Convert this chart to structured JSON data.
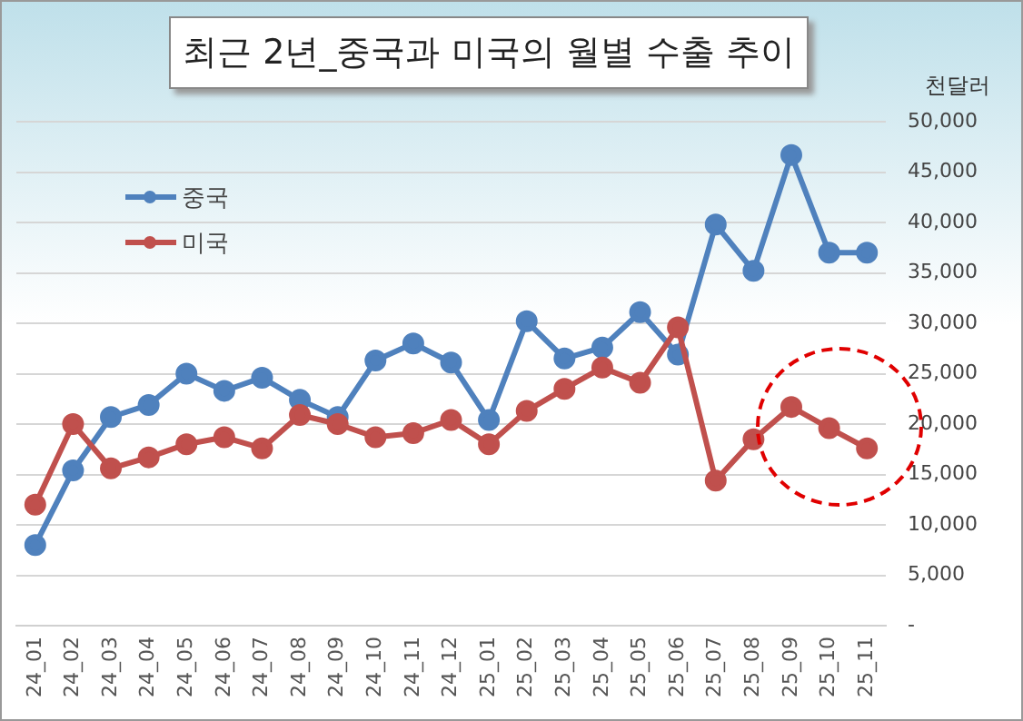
{
  "chart_data": {
    "type": "line",
    "title": "최근 2년_중국과 미국의 월별 수출 추이",
    "ylabel": "천달러",
    "categories": [
      "24_01",
      "24_02",
      "24_03",
      "24_04",
      "24_05",
      "24_06",
      "24_07",
      "24_08",
      "24_09",
      "24_10",
      "24_11",
      "24_12",
      "25_01",
      "25_02",
      "25_03",
      "25_04",
      "25_05",
      "25_06",
      "25_07",
      "25_08",
      "25_09",
      "25_10",
      "25_11"
    ],
    "series": [
      {
        "name": "중국",
        "color": "#4f81bd",
        "values": [
          8000,
          15400,
          20700,
          21900,
          25000,
          23300,
          24600,
          22400,
          20700,
          26300,
          28000,
          26100,
          20400,
          30200,
          26500,
          27600,
          31100,
          26900,
          39800,
          35200,
          46700,
          37000,
          37000
        ]
      },
      {
        "name": "미국",
        "color": "#c0504d",
        "values": [
          12000,
          20000,
          15600,
          16700,
          18000,
          18700,
          17600,
          20900,
          20000,
          18700,
          19100,
          20400,
          18000,
          21300,
          23500,
          25600,
          24100,
          29600,
          14400,
          18500,
          21700,
          19600,
          17600
        ]
      }
    ],
    "ylim": [
      0,
      50000
    ],
    "yticks": [
      {
        "value": 0,
        "label": "-"
      },
      {
        "value": 5000,
        "label": "5,000"
      },
      {
        "value": 10000,
        "label": "10,000"
      },
      {
        "value": 15000,
        "label": "15,000"
      },
      {
        "value": 20000,
        "label": "20,000"
      },
      {
        "value": 25000,
        "label": "25,000"
      },
      {
        "value": 30000,
        "label": "30,000"
      },
      {
        "value": 35000,
        "label": "35,000"
      },
      {
        "value": 40000,
        "label": "40,000"
      },
      {
        "value": 45000,
        "label": "45,000"
      },
      {
        "value": 50000,
        "label": "50,000"
      }
    ],
    "grid": "y",
    "legend": "top left",
    "marker": "circle",
    "line_style": "solid"
  }
}
